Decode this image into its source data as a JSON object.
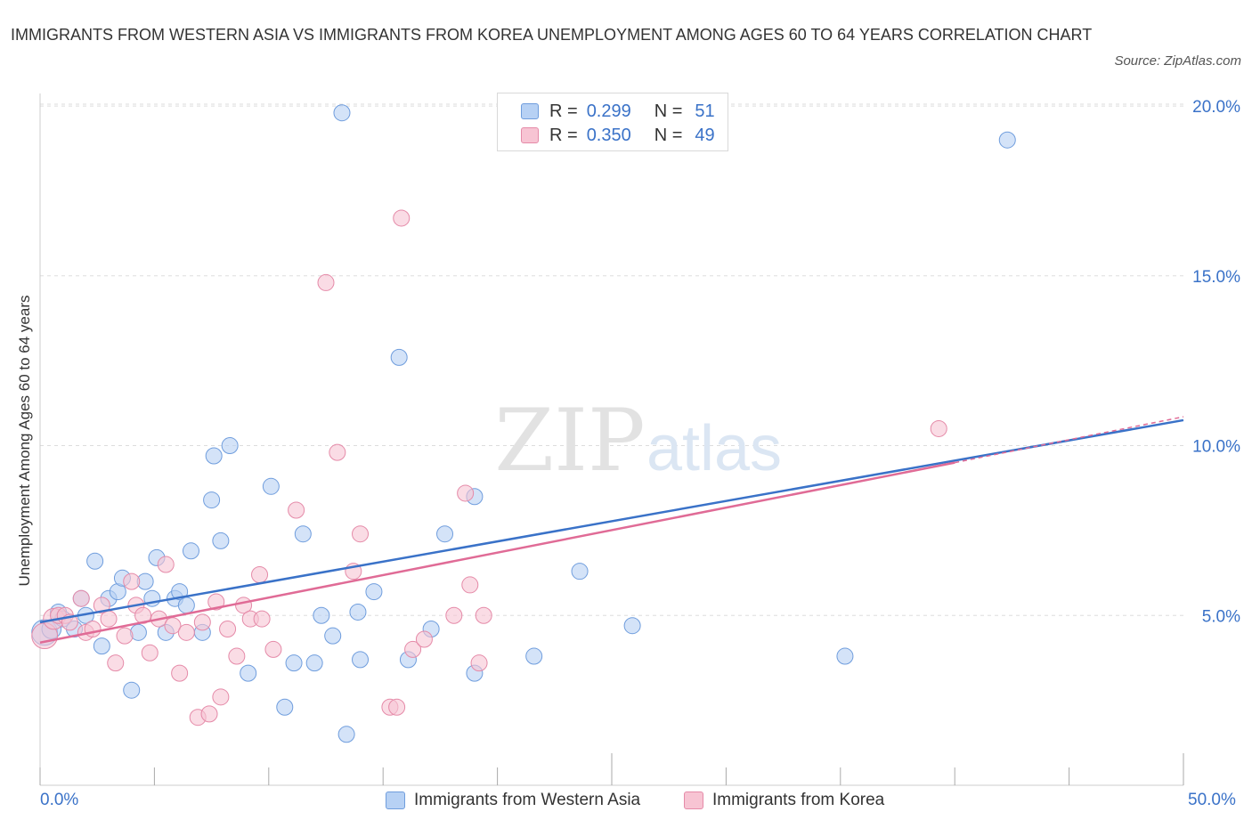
{
  "title": "IMMIGRANTS FROM WESTERN ASIA VS IMMIGRANTS FROM KOREA UNEMPLOYMENT AMONG AGES 60 TO 64 YEARS CORRELATION CHART",
  "source": "Source: ZipAtlas.com",
  "watermark": {
    "zip": "ZIP",
    "atlas": "atlas"
  },
  "legend": {
    "r_label": "R =",
    "n_label": "N =",
    "series1": {
      "r": "0.299",
      "n": "51"
    },
    "series2": {
      "r": "0.350",
      "n": "49"
    }
  },
  "colors": {
    "blue_fill": "#b7d1f4",
    "blue_stroke": "#6f9ddd",
    "blue_line": "#3a72c8",
    "pink_fill": "#f7c4d3",
    "pink_stroke": "#e58aa8",
    "pink_line": "#e06b96",
    "axis_text": "#3a72c8",
    "grid": "#dddddd"
  },
  "chart_data": {
    "type": "scatter",
    "title": "IMMIGRANTS FROM WESTERN ASIA VS IMMIGRANTS FROM KOREA UNEMPLOYMENT AMONG AGES 60 TO 64 YEARS CORRELATION CHART",
    "xlabel": "",
    "ylabel": "Unemployment Among Ages 60 to 64 years",
    "xlim": [
      0,
      50
    ],
    "ylim": [
      0,
      20.5
    ],
    "x_tick_labels": [
      "0.0%",
      "50.0%"
    ],
    "y_ticks": [
      5,
      10,
      15,
      20
    ],
    "y_tick_labels": [
      "5.0%",
      "10.0%",
      "15.0%",
      "20.0%"
    ],
    "grid": true,
    "series": [
      {
        "name": "Immigrants from Western Asia",
        "color": "#b7d1f4",
        "r": 0.299,
        "n": 51,
        "trend": {
          "x": [
            0,
            50
          ],
          "y": [
            4.8,
            10.75
          ]
        },
        "points": [
          {
            "x": 0.2,
            "y": 4.5,
            "s": 1.6
          },
          {
            "x": 0.5,
            "y": 4.6,
            "s": 1.2
          },
          {
            "x": 0.8,
            "y": 5.1,
            "s": 1
          },
          {
            "x": 1.0,
            "y": 4.9,
            "s": 1
          },
          {
            "x": 1.5,
            "y": 4.6,
            "s": 1
          },
          {
            "x": 1.8,
            "y": 5.5,
            "s": 1
          },
          {
            "x": 2.0,
            "y": 5.0,
            "s": 1
          },
          {
            "x": 2.4,
            "y": 6.6,
            "s": 1
          },
          {
            "x": 2.7,
            "y": 4.1,
            "s": 1
          },
          {
            "x": 3.0,
            "y": 5.5,
            "s": 1
          },
          {
            "x": 3.4,
            "y": 5.7,
            "s": 1
          },
          {
            "x": 3.6,
            "y": 6.1,
            "s": 1
          },
          {
            "x": 4.0,
            "y": 2.8,
            "s": 1
          },
          {
            "x": 4.3,
            "y": 4.5,
            "s": 1
          },
          {
            "x": 4.6,
            "y": 6.0,
            "s": 1
          },
          {
            "x": 4.9,
            "y": 5.5,
            "s": 1
          },
          {
            "x": 5.1,
            "y": 6.7,
            "s": 1
          },
          {
            "x": 5.5,
            "y": 4.5,
            "s": 1
          },
          {
            "x": 5.9,
            "y": 5.5,
            "s": 1
          },
          {
            "x": 6.1,
            "y": 5.7,
            "s": 1
          },
          {
            "x": 6.4,
            "y": 5.3,
            "s": 1
          },
          {
            "x": 6.6,
            "y": 6.9,
            "s": 1
          },
          {
            "x": 7.1,
            "y": 4.5,
            "s": 1
          },
          {
            "x": 7.5,
            "y": 8.4,
            "s": 1
          },
          {
            "x": 7.6,
            "y": 9.7,
            "s": 1
          },
          {
            "x": 7.9,
            "y": 7.2,
            "s": 1
          },
          {
            "x": 8.3,
            "y": 10.0,
            "s": 1
          },
          {
            "x": 9.1,
            "y": 3.3,
            "s": 1
          },
          {
            "x": 10.1,
            "y": 8.8,
            "s": 1
          },
          {
            "x": 10.7,
            "y": 2.3,
            "s": 1
          },
          {
            "x": 11.1,
            "y": 3.6,
            "s": 1
          },
          {
            "x": 11.5,
            "y": 7.4,
            "s": 1
          },
          {
            "x": 12.0,
            "y": 3.6,
            "s": 1
          },
          {
            "x": 12.3,
            "y": 5.0,
            "s": 1
          },
          {
            "x": 12.8,
            "y": 4.4,
            "s": 1
          },
          {
            "x": 13.2,
            "y": 19.8,
            "s": 1
          },
          {
            "x": 13.4,
            "y": 1.5,
            "s": 1
          },
          {
            "x": 13.9,
            "y": 5.1,
            "s": 1
          },
          {
            "x": 14.0,
            "y": 3.7,
            "s": 1
          },
          {
            "x": 14.6,
            "y": 5.7,
            "s": 1
          },
          {
            "x": 15.7,
            "y": 12.6,
            "s": 1
          },
          {
            "x": 16.1,
            "y": 3.7,
            "s": 1
          },
          {
            "x": 17.1,
            "y": 4.6,
            "s": 1
          },
          {
            "x": 17.7,
            "y": 7.4,
            "s": 1
          },
          {
            "x": 19.0,
            "y": 8.5,
            "s": 1
          },
          {
            "x": 19.0,
            "y": 3.3,
            "s": 1
          },
          {
            "x": 21.6,
            "y": 3.8,
            "s": 1
          },
          {
            "x": 23.6,
            "y": 6.3,
            "s": 1
          },
          {
            "x": 25.9,
            "y": 4.7,
            "s": 1
          },
          {
            "x": 35.2,
            "y": 3.8,
            "s": 1
          },
          {
            "x": 42.3,
            "y": 19.0,
            "s": 1
          }
        ]
      },
      {
        "name": "Immigrants from Korea",
        "color": "#f7c4d3",
        "r": 0.35,
        "n": 49,
        "trend": {
          "x": [
            0,
            40
          ],
          "y": [
            4.2,
            9.5
          ]
        },
        "trend_dashed": {
          "x": [
            40,
            50
          ],
          "y": [
            9.5,
            10.85
          ]
        },
        "points": [
          {
            "x": 0.2,
            "y": 4.4,
            "s": 1.6
          },
          {
            "x": 0.6,
            "y": 4.9,
            "s": 1.3
          },
          {
            "x": 0.8,
            "y": 5.0,
            "s": 1
          },
          {
            "x": 1.1,
            "y": 5.0,
            "s": 1
          },
          {
            "x": 1.3,
            "y": 4.8,
            "s": 1
          },
          {
            "x": 1.8,
            "y": 5.5,
            "s": 1
          },
          {
            "x": 2.0,
            "y": 4.5,
            "s": 1
          },
          {
            "x": 2.3,
            "y": 4.6,
            "s": 1
          },
          {
            "x": 2.7,
            "y": 5.3,
            "s": 1
          },
          {
            "x": 3.0,
            "y": 4.9,
            "s": 1
          },
          {
            "x": 3.3,
            "y": 3.6,
            "s": 1
          },
          {
            "x": 3.7,
            "y": 4.4,
            "s": 1
          },
          {
            "x": 4.0,
            "y": 6.0,
            "s": 1
          },
          {
            "x": 4.2,
            "y": 5.3,
            "s": 1
          },
          {
            "x": 4.5,
            "y": 5.0,
            "s": 1
          },
          {
            "x": 4.8,
            "y": 3.9,
            "s": 1
          },
          {
            "x": 5.2,
            "y": 4.9,
            "s": 1
          },
          {
            "x": 5.5,
            "y": 6.5,
            "s": 1
          },
          {
            "x": 5.8,
            "y": 4.7,
            "s": 1
          },
          {
            "x": 6.1,
            "y": 3.3,
            "s": 1
          },
          {
            "x": 6.4,
            "y": 4.5,
            "s": 1
          },
          {
            "x": 6.9,
            "y": 2.0,
            "s": 1
          },
          {
            "x": 7.1,
            "y": 4.8,
            "s": 1
          },
          {
            "x": 7.4,
            "y": 2.1,
            "s": 1
          },
          {
            "x": 7.7,
            "y": 5.4,
            "s": 1
          },
          {
            "x": 7.9,
            "y": 2.6,
            "s": 1
          },
          {
            "x": 8.2,
            "y": 4.6,
            "s": 1
          },
          {
            "x": 8.6,
            "y": 3.8,
            "s": 1
          },
          {
            "x": 8.9,
            "y": 5.3,
            "s": 1
          },
          {
            "x": 9.2,
            "y": 4.9,
            "s": 1
          },
          {
            "x": 9.6,
            "y": 6.2,
            "s": 1
          },
          {
            "x": 9.7,
            "y": 4.9,
            "s": 1
          },
          {
            "x": 10.2,
            "y": 4.0,
            "s": 1
          },
          {
            "x": 11.2,
            "y": 8.1,
            "s": 1
          },
          {
            "x": 12.5,
            "y": 14.8,
            "s": 1
          },
          {
            "x": 13.0,
            "y": 9.8,
            "s": 1
          },
          {
            "x": 13.7,
            "y": 6.3,
            "s": 1
          },
          {
            "x": 14.0,
            "y": 7.4,
            "s": 1
          },
          {
            "x": 15.3,
            "y": 2.3,
            "s": 1
          },
          {
            "x": 15.6,
            "y": 2.3,
            "s": 1
          },
          {
            "x": 15.8,
            "y": 16.7,
            "s": 1
          },
          {
            "x": 16.3,
            "y": 4.0,
            "s": 1
          },
          {
            "x": 16.8,
            "y": 4.3,
            "s": 1
          },
          {
            "x": 18.1,
            "y": 5.0,
            "s": 1
          },
          {
            "x": 18.6,
            "y": 8.6,
            "s": 1
          },
          {
            "x": 18.8,
            "y": 5.9,
            "s": 1
          },
          {
            "x": 19.2,
            "y": 3.6,
            "s": 1
          },
          {
            "x": 19.4,
            "y": 5.0,
            "s": 1
          },
          {
            "x": 39.3,
            "y": 10.5,
            "s": 1
          }
        ]
      }
    ]
  },
  "bottom_legend": {
    "series1": "Immigrants from Western Asia",
    "series2": "Immigrants from Korea"
  }
}
